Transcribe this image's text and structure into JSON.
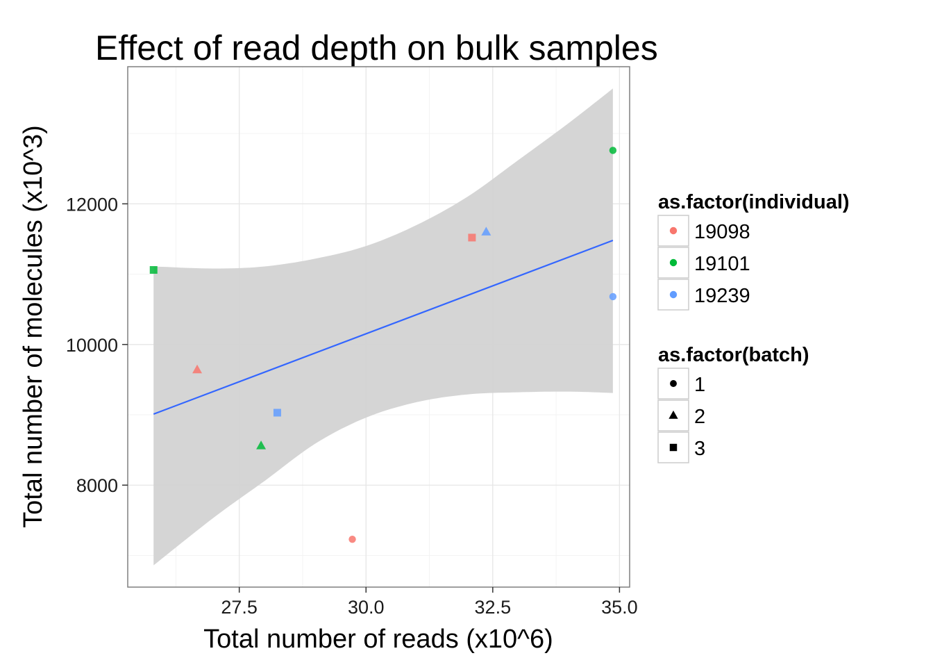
{
  "chart_data": {
    "type": "scatter",
    "title": "Effect of read depth on bulk samples",
    "xlabel": "Total number of reads (x10^6)",
    "ylabel": "Total number of molecules (x10^3)",
    "xlim": [
      25.3,
      35.2
    ],
    "ylim": [
      6550,
      13950
    ],
    "x_ticks": [
      "27.5",
      "30.0",
      "32.5",
      "35.0"
    ],
    "x_tick_values": [
      27.5,
      30.0,
      32.5,
      35.0
    ],
    "y_ticks": [
      "8000",
      "10000",
      "12000"
    ],
    "y_tick_values": [
      8000,
      10000,
      12000
    ],
    "grid": true,
    "legend_placement": "right",
    "colors": {
      "19098": "#f8766d",
      "19101": "#00ba38",
      "19239": "#619cff",
      "fit_line": "#3366ff",
      "band": "#d3d3d3"
    },
    "legends": [
      {
        "title": "as.factor(individual)",
        "kind": "color",
        "entries": [
          {
            "label": "19098",
            "color": "#f8766d"
          },
          {
            "label": "19101",
            "color": "#00ba38"
          },
          {
            "label": "19239",
            "color": "#619cff"
          }
        ]
      },
      {
        "title": "as.factor(batch)",
        "kind": "shape",
        "entries": [
          {
            "label": "1",
            "shape": "circle"
          },
          {
            "label": "2",
            "shape": "triangle"
          },
          {
            "label": "3",
            "shape": "square"
          }
        ]
      }
    ],
    "points": [
      {
        "individual": "19098",
        "batch": "1",
        "x": 29.73,
        "y": 7230,
        "shape": "circle"
      },
      {
        "individual": "19098",
        "batch": "2",
        "x": 26.67,
        "y": 9640,
        "shape": "triangle"
      },
      {
        "individual": "19098",
        "batch": "3",
        "x": 32.09,
        "y": 11520,
        "shape": "square"
      },
      {
        "individual": "19101",
        "batch": "1",
        "x": 34.87,
        "y": 12760,
        "shape": "circle"
      },
      {
        "individual": "19101",
        "batch": "2",
        "x": 27.93,
        "y": 8560,
        "shape": "triangle"
      },
      {
        "individual": "19101",
        "batch": "3",
        "x": 25.81,
        "y": 11060,
        "shape": "square"
      },
      {
        "individual": "19239",
        "batch": "1",
        "x": 34.87,
        "y": 10680,
        "shape": "circle"
      },
      {
        "individual": "19239",
        "batch": "2",
        "x": 32.37,
        "y": 11600,
        "shape": "triangle"
      },
      {
        "individual": "19239",
        "batch": "3",
        "x": 28.25,
        "y": 9030,
        "shape": "square"
      }
    ],
    "fit_line": {
      "x": [
        25.81,
        34.87
      ],
      "y": [
        9010,
        11480
      ]
    },
    "confidence_band": {
      "x": [
        25.81,
        27.0,
        28.0,
        29.0,
        30.0,
        31.0,
        32.0,
        33.0,
        34.0,
        34.87
      ],
      "upper": [
        11110,
        11080,
        11110,
        11220,
        11400,
        11700,
        12100,
        12620,
        13150,
        13640
      ],
      "lower": [
        6860,
        7540,
        8060,
        8590,
        8960,
        9180,
        9290,
        9320,
        9330,
        9310
      ]
    }
  }
}
